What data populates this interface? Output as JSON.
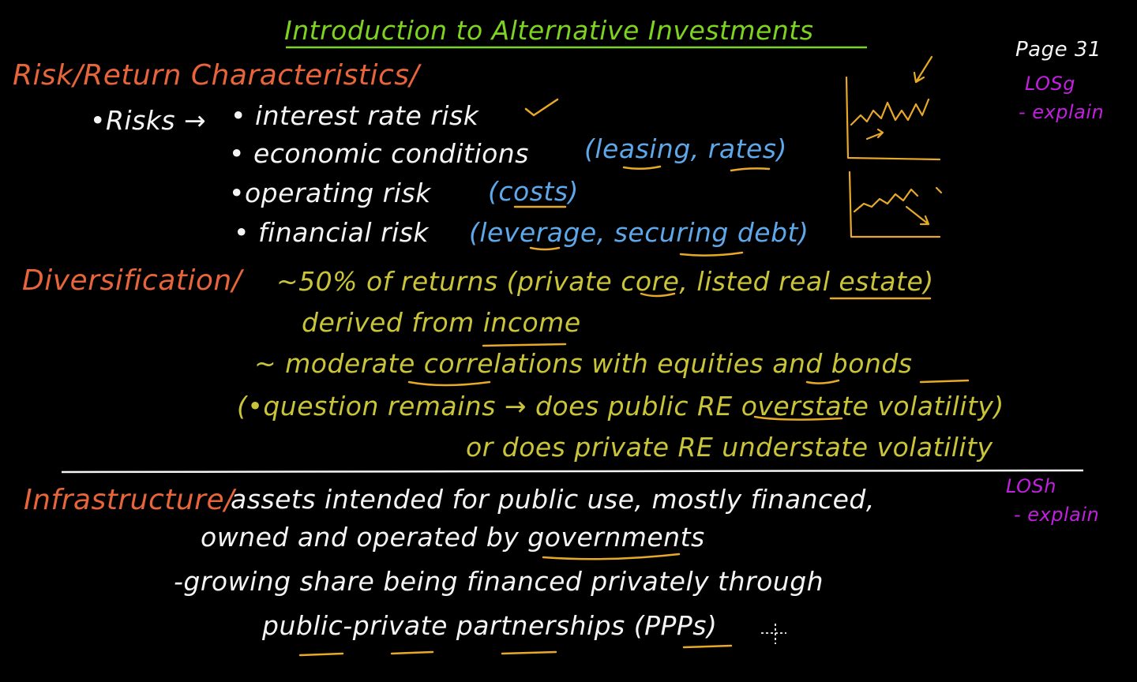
{
  "title": "Introduction to Alternative Investments",
  "page_label": "Page 31",
  "los_top": {
    "code": "LOSg",
    "verb": "- explain"
  },
  "los_bottom": {
    "code": "LOSh",
    "verb": "- explain"
  },
  "risk_section": {
    "heading": "Risk/Return Characteristics/",
    "risks_label": "•Risks →",
    "items": [
      {
        "text": "• interest rate risk",
        "note": ""
      },
      {
        "text": "• economic conditions",
        "note": "(leasing, rates)"
      },
      {
        "text": "•operating risk",
        "note": "(costs)"
      },
      {
        "text": "• financial risk",
        "note": "(leverage, securing debt)"
      }
    ]
  },
  "diversification": {
    "heading": "Diversification/",
    "line1": "~50% of returns (private core, listed real estate)",
    "line2": "derived from income",
    "line3": "~ moderate correlations with equities and bonds",
    "q_line1": "(•question remains → does public RE overstate volatility)",
    "q_line2": "or does private RE understate volatility"
  },
  "infrastructure": {
    "heading": "Infrastructure/",
    "line1": "assets intended for public use, mostly financed,",
    "line2": "owned and operated by governments",
    "line3": "-growing share being financed privately through",
    "line4": "public-private partnerships (PPPs)"
  },
  "colors": {
    "background": "#000000",
    "title": "#7ed321",
    "heading": "#e8643a",
    "text": "#f4f4f4",
    "note": "#5ea7e8",
    "diversification_text": "#c9c43a",
    "underline": "#e8a928",
    "los": "#c21fe0",
    "chart_sketch": "#e8a928"
  }
}
